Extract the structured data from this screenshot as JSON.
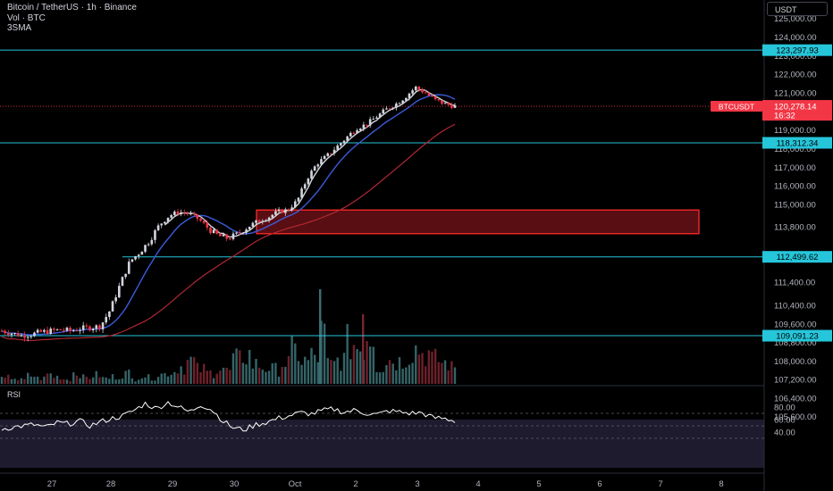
{
  "header": {
    "title": "Bitcoin / TetherUS · 1h · Binance",
    "indicator_vol": "Vol · BTC",
    "indicator_sma": "3SMA",
    "currency_button": "USDT"
  },
  "price_label": {
    "symbol": "BTCUSDT",
    "price": "120,278.14",
    "countdown": "16:32",
    "value": 120278.14,
    "color": "#f23645"
  },
  "colors": {
    "hline": "#26c6da",
    "box_border": "#ff2a2a",
    "box_fill": "#6e1218",
    "sma_fast": "#d1d4dc",
    "sma_mid": "#3b5bdb",
    "sma_slow": "#b22833",
    "up": "#d1d4dc",
    "down": "#f23645",
    "rsi_line": "#ffffff"
  },
  "rsi": {
    "label": "RSI",
    "levels": [
      "80.00",
      "60.00",
      "40.00"
    ],
    "upper": 70,
    "lower": 30
  },
  "chart_data": {
    "type": "candlestick",
    "title": "Bitcoin / TetherUS · 1h · Binance",
    "x_ticks": [
      "27",
      "28",
      "29",
      "30",
      "Oct",
      "2",
      "3",
      "4",
      "5",
      "6",
      "7",
      "8"
    ],
    "y_ticks": [
      "125,000.00",
      "124,000.00",
      "123,000.00",
      "122,000.00",
      "121,000.00",
      "119,000.00",
      "118,000.00",
      "117,000.00",
      "116,000.00",
      "115,000.00",
      "113,800.00",
      "111,400.00",
      "110,400.00",
      "109,600.00",
      "108,800.00",
      "108,000.00",
      "107,200.00",
      "106,400.00",
      "105,600.00"
    ],
    "horizontal_levels": [
      "123,297.93",
      "118,312.34",
      "112,499.62",
      "109,091.23"
    ],
    "zone": {
      "top": 114700,
      "bottom": 113500
    },
    "price_path": [
      109300,
      109200,
      109100,
      109150,
      109250,
      109300,
      109350,
      109300,
      109400,
      109450,
      109500,
      110200,
      111300,
      112300,
      112700,
      113200,
      113900,
      114400,
      114600,
      114500,
      114200,
      113700,
      113400,
      113300,
      113500,
      113800,
      114100,
      114300,
      114600,
      114700,
      115200,
      116400,
      117200,
      117600,
      118100,
      118600,
      119100,
      119300,
      119700,
      120100,
      120400,
      120800,
      121300,
      121000,
      120600,
      120400,
      120278
    ],
    "volume_heights": [
      6,
      8,
      5,
      10,
      7,
      12,
      9,
      6,
      14,
      8,
      11,
      7,
      9,
      13,
      6,
      10,
      8,
      12,
      15,
      22,
      28,
      18,
      14,
      20,
      16,
      30,
      36,
      24,
      20,
      18,
      26,
      40,
      28,
      34,
      60,
      24,
      30,
      50,
      46,
      62,
      22,
      30,
      28,
      36,
      44,
      38,
      30,
      26,
      20
    ],
    "rsi_path": [
      45,
      48,
      50,
      52,
      47,
      55,
      53,
      58,
      50,
      57,
      62,
      66,
      75,
      86,
      77,
      88,
      80,
      72,
      84,
      76,
      58,
      46,
      44,
      52,
      56,
      62,
      66,
      71,
      69,
      74,
      77,
      72,
      75,
      70,
      68,
      74,
      72,
      70,
      71,
      63,
      62,
      58
    ]
  }
}
